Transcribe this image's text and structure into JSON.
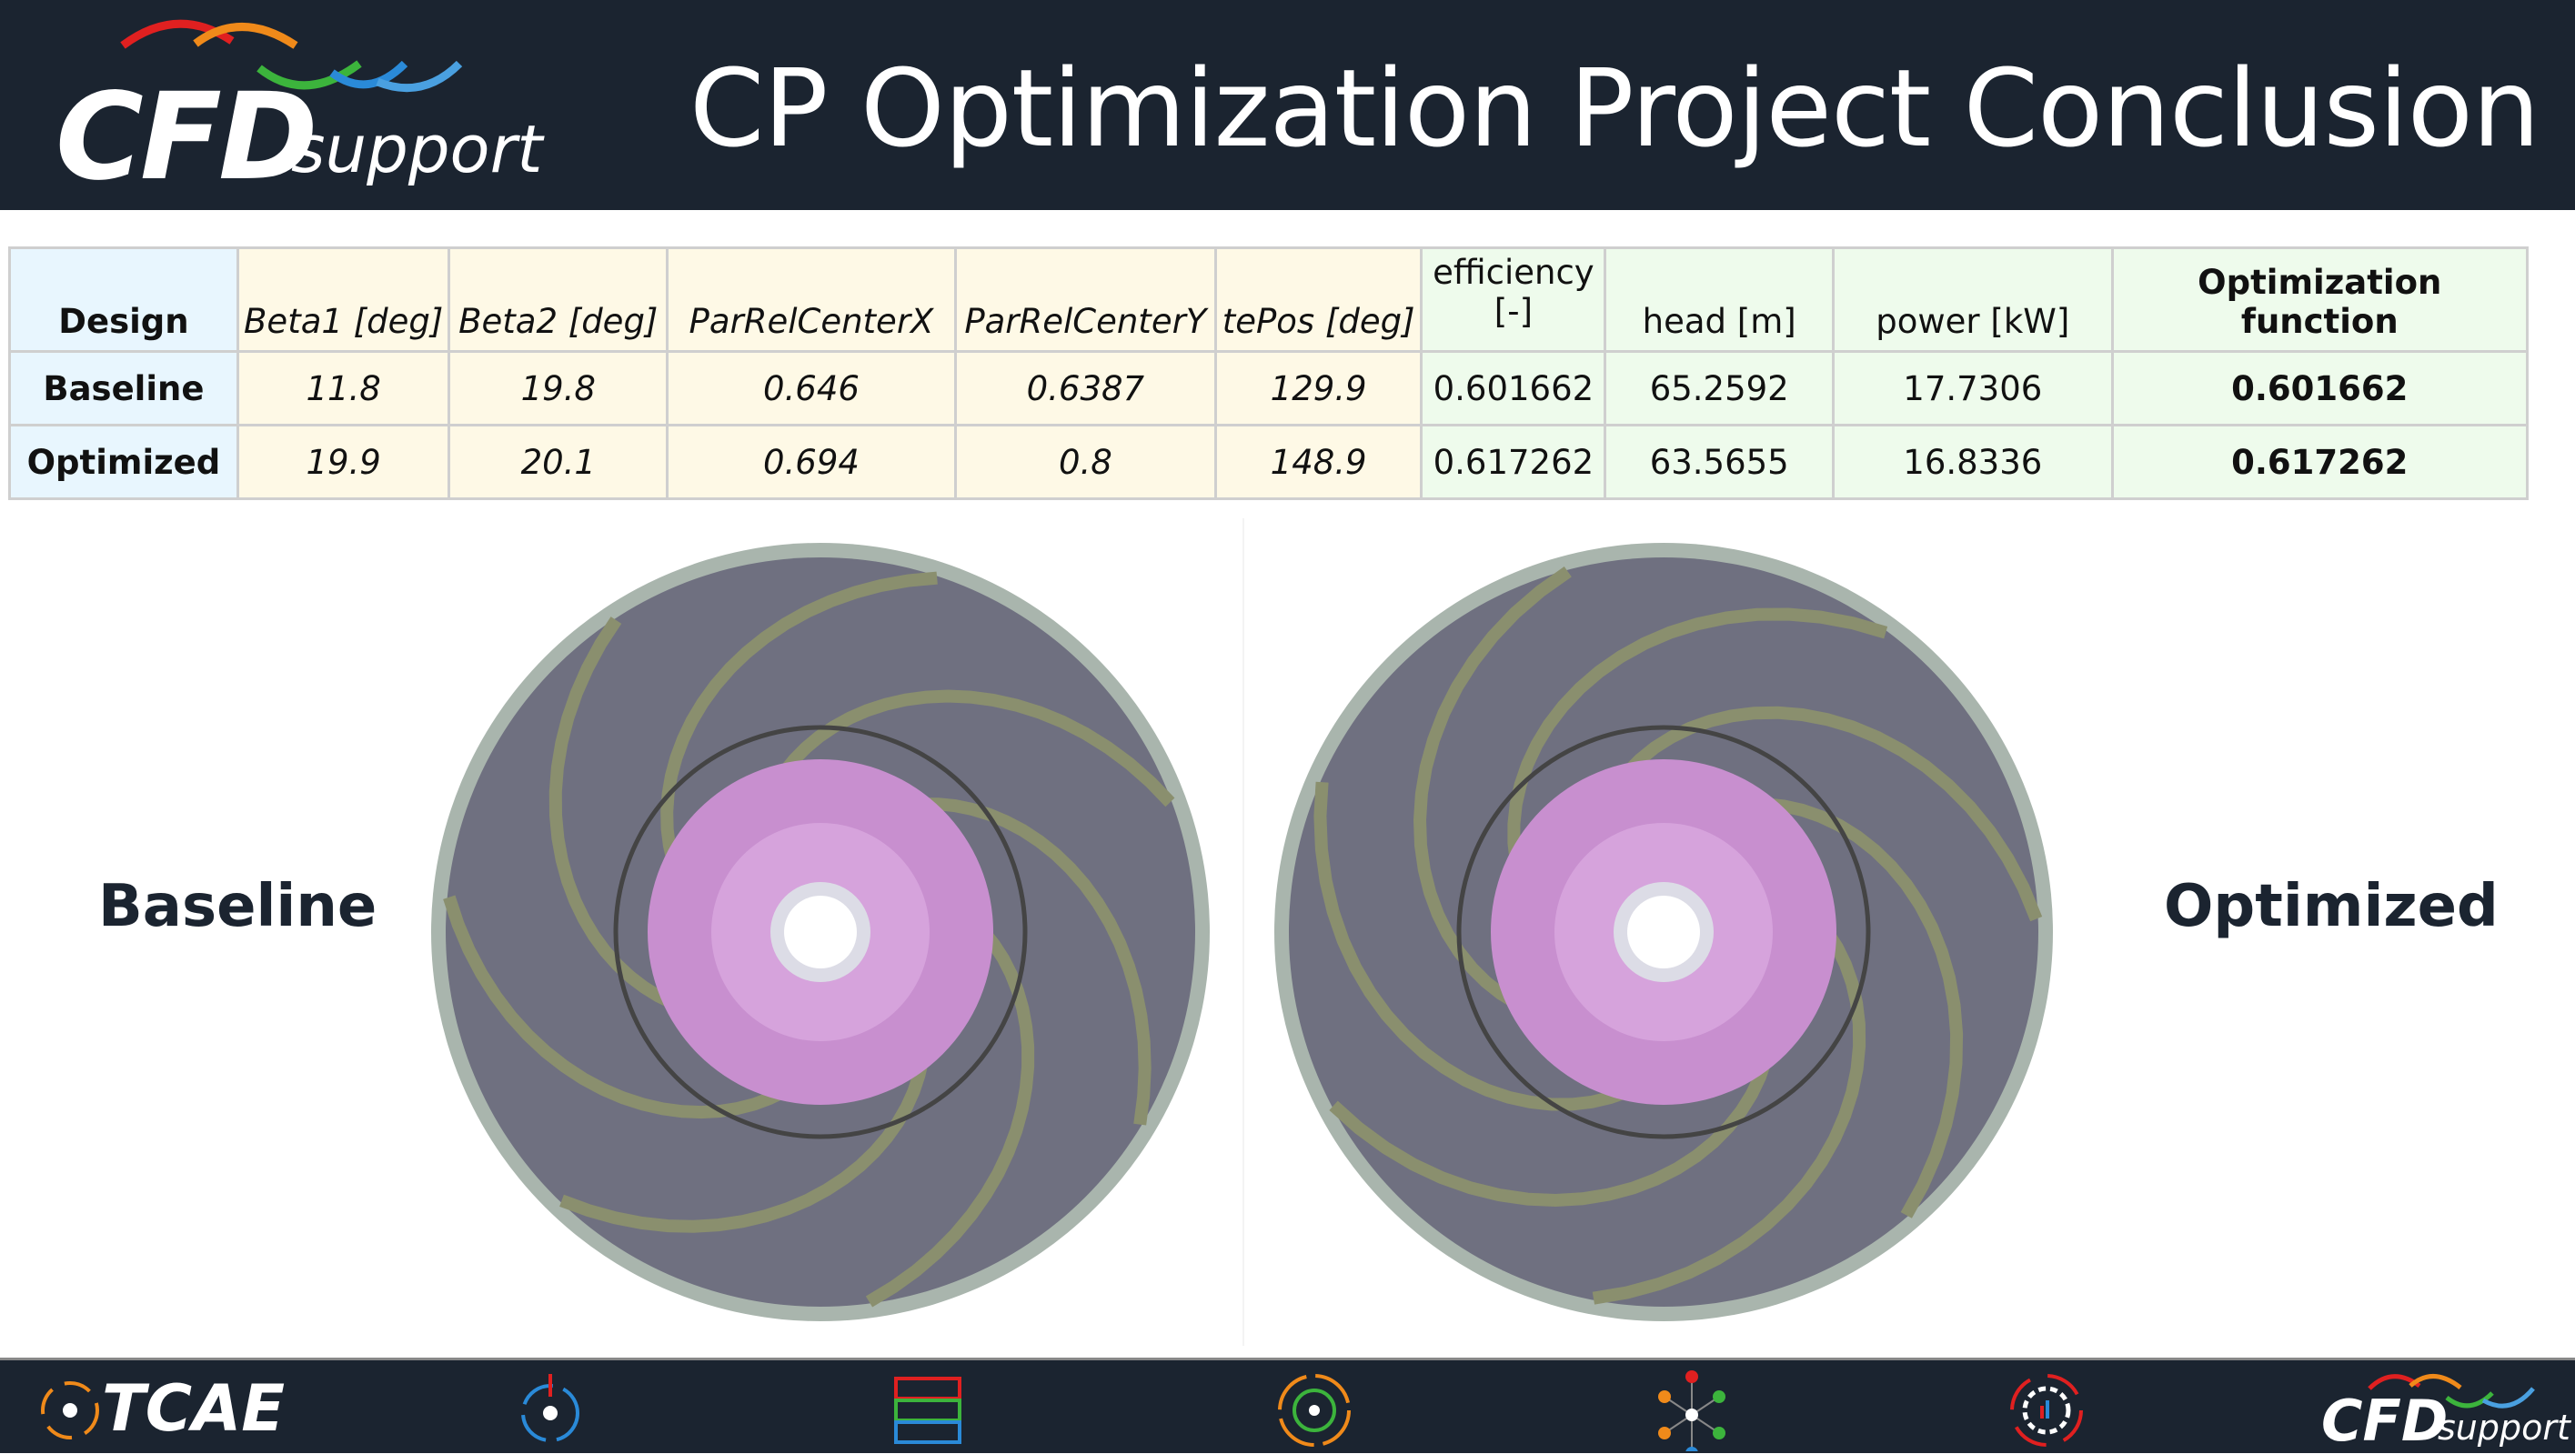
{
  "header": {
    "logo_main": "CFD",
    "logo_sub": "support",
    "title": "CP Optimization Project Conclusion"
  },
  "table": {
    "headers": [
      "Design",
      "Beta1 [deg]",
      "Beta2 [deg]",
      "ParRelCenterX",
      "ParRelCenterY",
      "tePos [deg]",
      "efficiency [-]",
      "head [m]",
      "power [kW]",
      "Optimization function"
    ],
    "rows": [
      [
        "Baseline",
        "11.8",
        "19.8",
        "0.646",
        "0.6387",
        "129.9",
        "0.601662",
        "65.2592",
        "17.7306",
        "0.601662"
      ],
      [
        "Optimized",
        "19.9",
        "20.1",
        "0.694",
        "0.8",
        "148.9",
        "0.617262",
        "63.5655",
        "16.8336",
        "0.617262"
      ]
    ]
  },
  "labels": {
    "left": "Baseline",
    "right": "Optimized"
  },
  "footer": {
    "tcae": "TCAE",
    "logo_main": "CFD",
    "logo_sub": "support",
    "icons": [
      "tcae-icon",
      "rotating-machinery-icon",
      "mesh-icon",
      "turbomachinery-icon",
      "network-icon",
      "gear-optimization-icon"
    ]
  },
  "colors": {
    "header_bg": "#1b2430",
    "design_col": "#e8f6fe",
    "param_col": "#fef9e6",
    "result_col": "#eefbec"
  }
}
